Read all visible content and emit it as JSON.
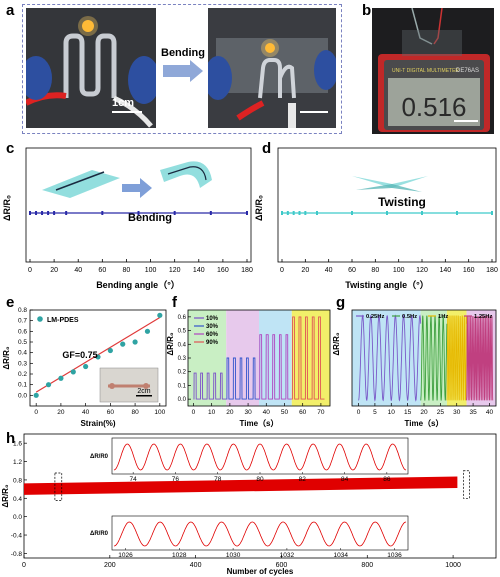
{
  "panel_letters": {
    "a": "a",
    "b": "b",
    "c": "c",
    "d": "d",
    "e": "e",
    "f": "f",
    "g": "g",
    "h": "h"
  },
  "panel_a": {
    "arrow_label": "Bending",
    "scale_label": "1cm"
  },
  "panel_b": {
    "meter_display": "0.516",
    "meter_brand": "DE76AS"
  },
  "colors": {
    "bend_line": "#2a2aa8",
    "twist_line": "#3fc9c9",
    "fit_line": "#e03a3a",
    "marker": "#2fa3a3",
    "cycle_line": "#e00000"
  },
  "chart_data": [
    {
      "type": "line",
      "panel": "c",
      "title": "",
      "xlabel": "Bending angle（°）",
      "ylabel": "ΔR/R₀",
      "xlim": [
        0,
        180
      ],
      "xticks": [
        0,
        20,
        40,
        60,
        80,
        100,
        120,
        140,
        160,
        180
      ],
      "x": [
        0,
        5,
        10,
        15,
        20,
        30,
        60,
        90,
        120,
        150,
        180
      ],
      "values": [
        0,
        0,
        0,
        0,
        0,
        0,
        0,
        0,
        0,
        0,
        0
      ],
      "annotation": "Bending"
    },
    {
      "type": "line",
      "panel": "d",
      "title": "",
      "xlabel": "Twisting angle（°）",
      "ylabel": "ΔR/R₀",
      "xlim": [
        0,
        180
      ],
      "xticks": [
        0,
        20,
        40,
        60,
        80,
        100,
        120,
        140,
        160,
        180
      ],
      "x": [
        0,
        5,
        10,
        15,
        20,
        30,
        60,
        90,
        120,
        150,
        180
      ],
      "values": [
        0,
        0,
        0,
        0,
        0,
        0,
        0,
        0,
        0,
        0,
        0
      ],
      "annotation": "Twisting"
    },
    {
      "type": "scatter",
      "panel": "e",
      "xlabel": "Strain(%)",
      "ylabel": "ΔR/R₀",
      "xlim": [
        -5,
        105
      ],
      "ylim": [
        -0.1,
        0.8
      ],
      "xticks": [
        0,
        20,
        40,
        60,
        80,
        100
      ],
      "yticks": [
        0.0,
        0.1,
        0.2,
        0.3,
        0.4,
        0.5,
        0.6,
        0.7,
        0.8
      ],
      "series": [
        {
          "name": "LM-PDES",
          "x": [
            0,
            10,
            20,
            30,
            40,
            50,
            60,
            70,
            80,
            90,
            100
          ],
          "y": [
            0.0,
            0.1,
            0.16,
            0.22,
            0.27,
            0.36,
            0.42,
            0.48,
            0.5,
            0.6,
            0.75
          ]
        }
      ],
      "fit": {
        "x": [
          0,
          100
        ],
        "y": [
          0.03,
          0.73
        ]
      },
      "annotation": "GF=0.75",
      "inset_scale": "2cm"
    },
    {
      "type": "line",
      "panel": "f",
      "xlabel": "Time（s）",
      "ylabel": "ΔR/R₀",
      "xlim": [
        -3,
        75
      ],
      "ylim": [
        -0.05,
        0.65
      ],
      "xticks": [
        0,
        10,
        20,
        30,
        40,
        50,
        60,
        70
      ],
      "yticks": [
        0.0,
        0.1,
        0.2,
        0.3,
        0.4,
        0.5,
        0.6
      ],
      "series": [
        {
          "name": "10%",
          "amplitude": 0.19,
          "t": [
            0,
            18
          ],
          "color": "#7a4fc8",
          "bg": "#c9efc4"
        },
        {
          "name": "30%",
          "amplitude": 0.3,
          "t": [
            18,
            36
          ],
          "color": "#3355cc",
          "bg": "#e7c9ec"
        },
        {
          "name": "60%",
          "amplitude": 0.47,
          "t": [
            36,
            54
          ],
          "color": "#b044c0",
          "bg": "#bfe4f5"
        },
        {
          "name": "90%",
          "amplitude": 0.6,
          "t": [
            54,
            72
          ],
          "color": "#e05555",
          "bg": "#f2ef6a"
        }
      ]
    },
    {
      "type": "line",
      "panel": "g",
      "xlabel": "Time（s）",
      "ylabel": "ΔR/R₀",
      "xlim": [
        -2,
        42
      ],
      "ylim": [
        -0.02,
        0.32
      ],
      "xticks": [
        0,
        5,
        10,
        15,
        20,
        25,
        30,
        35,
        40
      ],
      "series": [
        {
          "name": "0.25Hz",
          "t": [
            0,
            19
          ],
          "color": "#7a5ac8",
          "bg": "#bfe4f5"
        },
        {
          "name": "0.5Hz",
          "t": [
            19,
            27
          ],
          "color": "#3fa040",
          "bg": "#c9efc4"
        },
        {
          "name": "1Hz",
          "t": [
            27,
            33
          ],
          "color": "#e6b800",
          "bg": "#f2ef6a"
        },
        {
          "name": "1.25Hz",
          "t": [
            33,
            41
          ],
          "color": "#c04080",
          "bg": "#e7c9ec"
        }
      ],
      "amplitude": 0.3
    },
    {
      "type": "line",
      "panel": "h",
      "xlabel": "Number of cycles",
      "ylabel": "ΔR/R₀",
      "xlim": [
        0,
        1100
      ],
      "ylim": [
        -0.9,
        1.8
      ],
      "xticks": [
        0,
        200,
        400,
        600,
        800,
        1000
      ],
      "yticks": [
        -0.8,
        -0.4,
        0.0,
        0.4,
        0.8,
        1.2,
        1.6
      ],
      "baseline_start": 0.6,
      "baseline_end": 0.75,
      "band": 0.25,
      "inset_top": {
        "xlim": [
          73,
          87
        ],
        "xticks": [
          74,
          76,
          78,
          80,
          82,
          84,
          86
        ],
        "ylabel": "ΔR/R0"
      },
      "inset_bottom": {
        "xlim": [
          1025.5,
          1036.5
        ],
        "xticks": [
          1026,
          1028,
          1030,
          1032,
          1034,
          1036
        ],
        "ylabel": "ΔR/R0"
      }
    }
  ]
}
